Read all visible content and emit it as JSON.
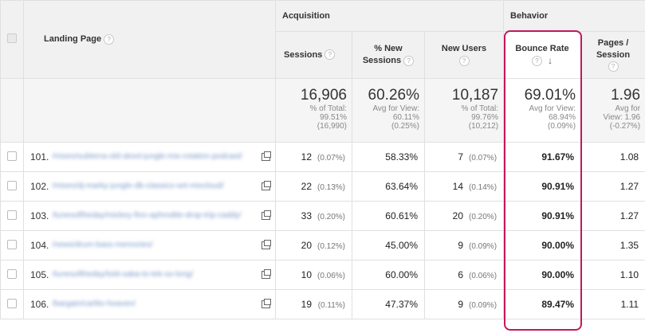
{
  "groups": {
    "acquisition": "Acquisition",
    "behavior": "Behavior"
  },
  "columns": {
    "landing_page": "Landing Page",
    "sessions": "Sessions",
    "new_sessions_line1": "% New",
    "new_sessions_line2": "Sessions",
    "new_users": "New Users",
    "bounce_rate": "Bounce Rate",
    "pages_session_line1": "Pages /",
    "pages_session_line2": "Session"
  },
  "help_glyph": "?",
  "sort_arrow": "↓",
  "totals": {
    "sessions": {
      "value": "16,906",
      "line1": "% of Total:",
      "line2": "99.51%",
      "line3": "(16,990)"
    },
    "new_sessions": {
      "value": "60.26%",
      "line1": "Avg for View:",
      "line2": "60.11%",
      "line3": "(0.25%)"
    },
    "new_users": {
      "value": "10,187",
      "line1": "% of Total:",
      "line2": "99.76%",
      "line3": "(10,212)"
    },
    "bounce_rate": {
      "value": "69.01%",
      "line1": "Avg for View:",
      "line2": "68.94%",
      "line3": "(0.09%)"
    },
    "pages_session": {
      "value": "1.96",
      "line1": "Avg for",
      "line2": "View: 1.96",
      "line3": "(-0.27%)"
    }
  },
  "rows": [
    {
      "index": "101.",
      "page": "/mixes/subterra-old-skool-jungle-mix-rotation-podcast/",
      "sessions": "12",
      "sessions_pct": "(0.07%)",
      "new_sessions": "58.33%",
      "new_users": "7",
      "new_users_pct": "(0.07%)",
      "bounce_rate": "91.67%",
      "pages_session": "1.08"
    },
    {
      "index": "102.",
      "page": "/mixes/dj-marky-jungle-db-classics-set-mixcloud/",
      "sessions": "22",
      "sessions_pct": "(0.13%)",
      "new_sessions": "63.64%",
      "new_users": "14",
      "new_users_pct": "(0.14%)",
      "bounce_rate": "90.91%",
      "pages_session": "1.27"
    },
    {
      "index": "103.",
      "page": "/tunesoftheday/mickey-finn-aphrodite-drop-trip-caddy/",
      "sessions": "33",
      "sessions_pct": "(0.20%)",
      "new_sessions": "60.61%",
      "new_users": "20",
      "new_users_pct": "(0.20%)",
      "bounce_rate": "90.91%",
      "pages_session": "1.27"
    },
    {
      "index": "104.",
      "page": "/news/drum-bass-memories/",
      "sessions": "20",
      "sessions_pct": "(0.12%)",
      "new_sessions": "45.00%",
      "new_users": "9",
      "new_users_pct": "(0.09%)",
      "bounce_rate": "90.00%",
      "pages_session": "1.35"
    },
    {
      "index": "105.",
      "page": "/tunesoftheday/told-saba-to-tek-so-long/",
      "sessions": "10",
      "sessions_pct": "(0.06%)",
      "new_sessions": "60.00%",
      "new_users": "6",
      "new_users_pct": "(0.06%)",
      "bounce_rate": "90.00%",
      "pages_session": "1.10"
    },
    {
      "index": "106.",
      "page": "/bargain/carlito-heaven/",
      "sessions": "19",
      "sessions_pct": "(0.11%)",
      "new_sessions": "47.37%",
      "new_users": "9",
      "new_users_pct": "(0.09%)",
      "bounce_rate": "89.47%",
      "pages_session": "1.11"
    }
  ],
  "colors": {
    "highlight": "#c2185b",
    "header_bg": "#f1f1f1",
    "link": "#7a98c8"
  }
}
